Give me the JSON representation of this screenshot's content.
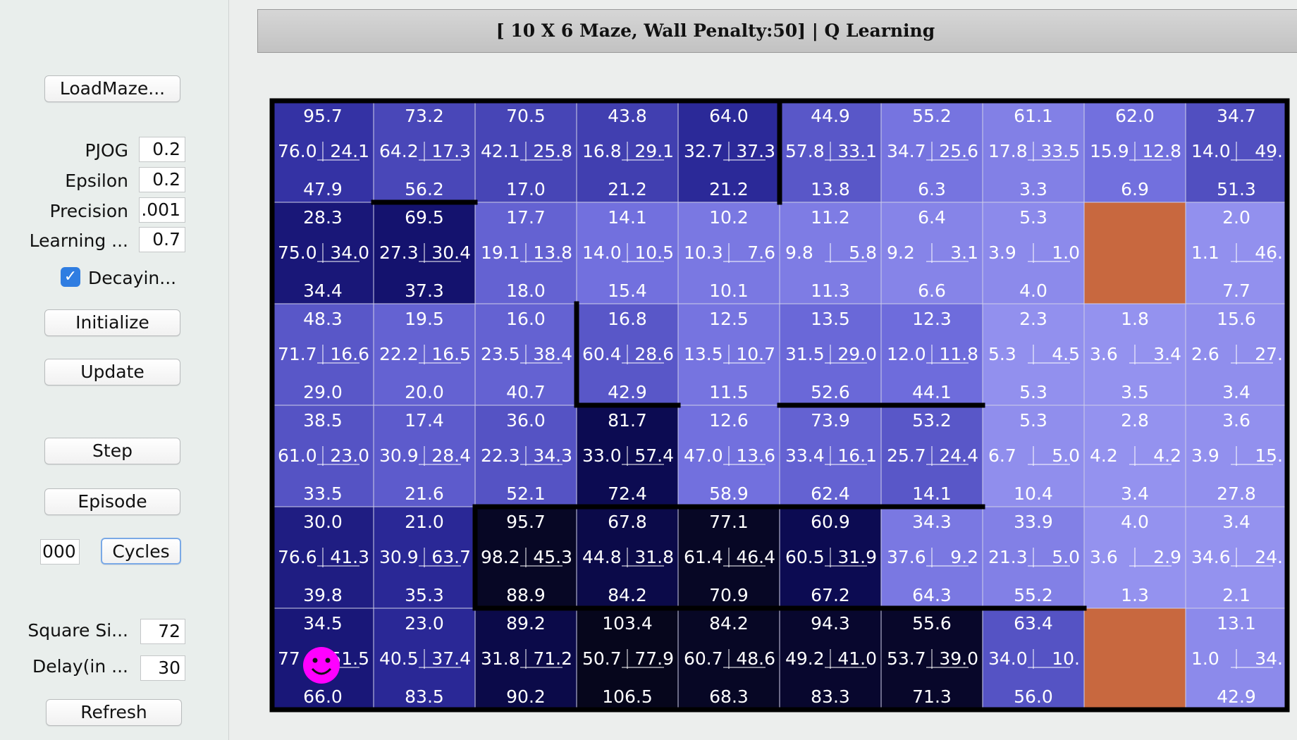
{
  "controls": {
    "load_maze": "LoadMaze...",
    "pjog_label": "PJOG",
    "pjog_value": "0.2",
    "epsilon_label": "Epsilon",
    "epsilon_value": "0.2",
    "precision_label": "Precision",
    "precision_value": ".001",
    "learning_label": "Learning ...",
    "learning_value": "0.7",
    "decaying_label": "Decayin...",
    "decaying_checked": true,
    "initialize": "Initialize",
    "update": "Update",
    "step": "Step",
    "episode": "Episode",
    "cycles_value": "000",
    "cycles": "Cycles",
    "square_size_label": "Square Si...",
    "square_size_value": "72",
    "delay_label": "Delay(in ...",
    "delay_value": "30",
    "refresh": "Refresh"
  },
  "header": {
    "title": "[ 10 X 6 Maze, Wall Penalty:50] |  Q Learning"
  },
  "colors": {
    "goal": "#c8683f",
    "agent": "#ff00ff",
    "wall": "#000000",
    "grid_line": "#cfcfe8",
    "cell_text": "#ffffff"
  },
  "maze": {
    "cols": 10,
    "rows": 6,
    "cells": [
      [
        {
          "t": "95.7",
          "l": "76.0",
          "r": "24.1",
          "b": "47.9",
          "shade": 0.28
        },
        {
          "t": "73.2",
          "l": "64.2",
          "r": "17.3",
          "b": "56.2",
          "shade": 0.18
        },
        {
          "t": "70.5",
          "l": "42.1",
          "r": "25.8",
          "b": "17.0",
          "shade": 0.19
        },
        {
          "t": "43.8",
          "l": "16.8",
          "r": "29.1",
          "b": "21.2",
          "shade": 0.22
        },
        {
          "t": "64.0",
          "l": "32.7",
          "r": "37.3",
          "b": "21.2",
          "shade": 0.34
        },
        {
          "t": "44.9",
          "l": "57.8",
          "r": "33.1",
          "b": "13.8",
          "shade": 0.1
        },
        {
          "t": "55.2",
          "l": "34.7",
          "r": "25.6",
          "b": "6.3",
          "shade": -0.04
        },
        {
          "t": "61.1",
          "l": "17.8",
          "r": "33.5",
          "b": "3.3",
          "shade": -0.1
        },
        {
          "t": "62.0",
          "l": "15.9",
          "r": "12.8",
          "b": "6.9",
          "shade": -0.02
        },
        {
          "t": "34.7",
          "l": "14.0",
          "r": "49.",
          "b": "51.3",
          "shade": 0.14
        }
      ],
      [
        {
          "t": "28.3",
          "l": "75.0",
          "r": "34.0",
          "b": "34.4",
          "shade": 0.5
        },
        {
          "t": "69.5",
          "l": "27.3",
          "r": "30.4",
          "b": "37.3",
          "shade": 0.55
        },
        {
          "t": "17.7",
          "l": "19.1",
          "r": "13.8",
          "b": "18.0",
          "shade": 0.05
        },
        {
          "t": "14.1",
          "l": "14.0",
          "r": "10.5",
          "b": "15.4",
          "shade": -0.02
        },
        {
          "t": "10.2",
          "l": "10.3",
          "r": "7.6",
          "b": "10.1",
          "shade": -0.06
        },
        {
          "t": "11.2",
          "l": "9.8",
          "r": "5.8",
          "b": "11.3",
          "shade": -0.08
        },
        {
          "t": "6.4",
          "l": "9.2",
          "r": "3.1",
          "b": "6.6",
          "shade": -0.12
        },
        {
          "t": "5.3",
          "l": "3.9",
          "r": "1.0",
          "b": "4.0",
          "shade": -0.15
        },
        {
          "goal": true
        },
        {
          "t": "2.0",
          "l": "1.1",
          "r": "46.",
          "b": "7.7",
          "shade": -0.18
        }
      ],
      [
        {
          "t": "48.3",
          "l": "71.7",
          "r": "16.6",
          "b": "29.0",
          "shade": 0.1
        },
        {
          "t": "19.5",
          "l": "22.2",
          "r": "16.5",
          "b": "20.0",
          "shade": 0.05
        },
        {
          "t": "16.0",
          "l": "23.5",
          "r": "38.4",
          "b": "40.7",
          "shade": 0.05
        },
        {
          "t": "16.8",
          "l": "60.4",
          "r": "28.6",
          "b": "42.9",
          "shade": 0.1
        },
        {
          "t": "12.5",
          "l": "13.5",
          "r": "10.7",
          "b": "11.5",
          "shade": -0.04
        },
        {
          "t": "13.5",
          "l": "31.5",
          "r": "29.0",
          "b": "52.6",
          "shade": 0.02
        },
        {
          "t": "12.3",
          "l": "12.0",
          "r": "11.8",
          "b": "44.1",
          "shade": 0.0
        },
        {
          "t": "2.3",
          "l": "5.3",
          "r": "4.5",
          "b": "5.3",
          "shade": -0.18
        },
        {
          "t": "1.8",
          "l": "3.6",
          "r": "3.4",
          "b": "3.5",
          "shade": -0.19
        },
        {
          "t": "15.6",
          "l": "2.6",
          "r": "27.",
          "b": "3.4",
          "shade": -0.17
        }
      ],
      [
        {
          "t": "38.5",
          "l": "61.0",
          "r": "23.0",
          "b": "33.5",
          "shade": 0.12
        },
        {
          "t": "17.4",
          "l": "30.9",
          "r": "28.4",
          "b": "21.6",
          "shade": 0.08
        },
        {
          "t": "36.0",
          "l": "22.3",
          "r": "34.3",
          "b": "52.1",
          "shade": 0.12
        },
        {
          "t": "81.7",
          "l": "33.0",
          "r": "57.4",
          "b": "72.4",
          "shade": 0.7
        },
        {
          "t": "12.6",
          "l": "47.0",
          "r": "13.6",
          "b": "58.9",
          "shade": -0.02
        },
        {
          "t": "73.9",
          "l": "33.4",
          "r": "16.1",
          "b": "62.4",
          "shade": 0.05
        },
        {
          "t": "53.2",
          "l": "25.7",
          "r": "24.4",
          "b": "14.1",
          "shade": 0.1
        },
        {
          "t": "5.3",
          "l": "6.7",
          "r": "5.0",
          "b": "10.4",
          "shade": -0.17
        },
        {
          "t": "2.8",
          "l": "4.2",
          "r": "4.2",
          "b": "3.4",
          "shade": -0.19
        },
        {
          "t": "3.6",
          "l": "3.9",
          "r": "15.",
          "b": "27.8",
          "shade": -0.18
        }
      ],
      [
        {
          "t": "30.0",
          "l": "76.6",
          "r": "41.3",
          "b": "39.8",
          "shade": 0.45
        },
        {
          "t": "21.0",
          "l": "30.9",
          "r": "63.7",
          "b": "35.3",
          "shade": 0.35
        },
        {
          "t": "95.7",
          "l": "98.2",
          "r": "45.3",
          "b": "88.9",
          "shade": 0.95
        },
        {
          "t": "67.8",
          "l": "44.8",
          "r": "31.8",
          "b": "84.2",
          "shade": 0.75
        },
        {
          "t": "77.1",
          "l": "61.4",
          "r": "46.4",
          "b": "70.9",
          "shade": 0.95
        },
        {
          "t": "60.9",
          "l": "60.5",
          "r": "31.9",
          "b": "67.2",
          "shade": 0.7
        },
        {
          "t": "34.3",
          "l": "37.6",
          "r": "9.2",
          "b": "64.3",
          "shade": -0.06
        },
        {
          "t": "33.9",
          "l": "21.3",
          "r": "5.0",
          "b": "55.2",
          "shade": -0.1
        },
        {
          "t": "4.0",
          "l": "3.6",
          "r": "2.9",
          "b": "1.3",
          "shade": -0.19
        },
        {
          "t": "3.4",
          "l": "34.6",
          "r": "24.",
          "b": "2.1",
          "shade": -0.19
        }
      ],
      [
        {
          "t": "34.5",
          "l": "77",
          "r": "51.5",
          "b": "66.0",
          "shade": 0.5,
          "agent": true
        },
        {
          "t": "23.0",
          "l": "40.5",
          "r": "37.4",
          "b": "83.5",
          "shade": 0.35
        },
        {
          "t": "89.2",
          "l": "31.8",
          "r": "71.2",
          "b": "90.2",
          "shade": 0.75
        },
        {
          "t": "103.4",
          "l": "50.7",
          "r": "77.9",
          "b": "106.5",
          "shade": 1.0
        },
        {
          "t": "84.2",
          "l": "60.7",
          "r": "48.6",
          "b": "68.3",
          "shade": 0.95
        },
        {
          "t": "94.3",
          "l": "49.2",
          "r": "41.0",
          "b": "83.3",
          "shade": 0.9
        },
        {
          "t": "55.6",
          "l": "53.7",
          "r": "39.0",
          "b": "71.3",
          "shade": 0.92
        },
        {
          "t": "63.4",
          "l": "34.0",
          "r": "10.",
          "b": "56.0",
          "shade": 0.12
        },
        {
          "goal": true
        },
        {
          "t": "13.1",
          "l": "1.0",
          "r": "34.",
          "b": "42.9",
          "shade": -0.15
        }
      ]
    ]
  }
}
